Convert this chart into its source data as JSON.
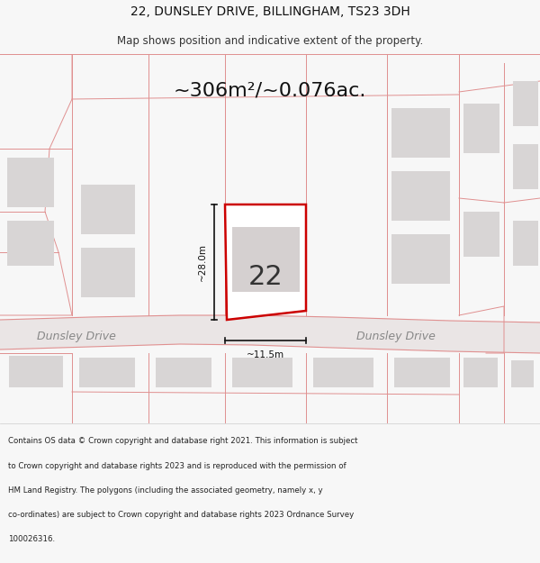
{
  "title_line1": "22, DUNSLEY DRIVE, BILLINGHAM, TS23 3DH",
  "title_line2": "Map shows position and indicative extent of the property.",
  "area_text": "~306m²/~0.076ac.",
  "property_number": "22",
  "dim_height": "~28.0m",
  "dim_width": "~11.5m",
  "street_label_left": "Dunsley Drive",
  "street_label_right": "Dunsley Drive",
  "footer_lines": [
    "Contains OS data © Crown copyright and database right 2021. This information is subject",
    "to Crown copyright and database rights 2023 and is reproduced with the permission of",
    "HM Land Registry. The polygons (including the associated geometry, namely x, y",
    "co-ordinates) are subject to Crown copyright and database rights 2023 Ordnance Survey",
    "100026316."
  ],
  "bg_color": "#f7f7f7",
  "map_bg_color": "#f2eeee",
  "plot_outline_color": "#cc0000",
  "line_color": "#e09090",
  "building_color": "#d8d5d5",
  "road_fill_color": "#eae5e5",
  "road_edge_color": "#c0a0a0",
  "title_color": "#111111",
  "subtitle_color": "#333333",
  "street_text_color": "#888888",
  "dim_color": "#111111",
  "number_color": "#333333",
  "footer_color": "#222222",
  "title_fontsize": 10,
  "subtitle_fontsize": 8.5,
  "area_fontsize": 16,
  "number_fontsize": 22,
  "dim_fontsize": 7.5,
  "street_fontsize": 9,
  "footer_fontsize": 6.2
}
